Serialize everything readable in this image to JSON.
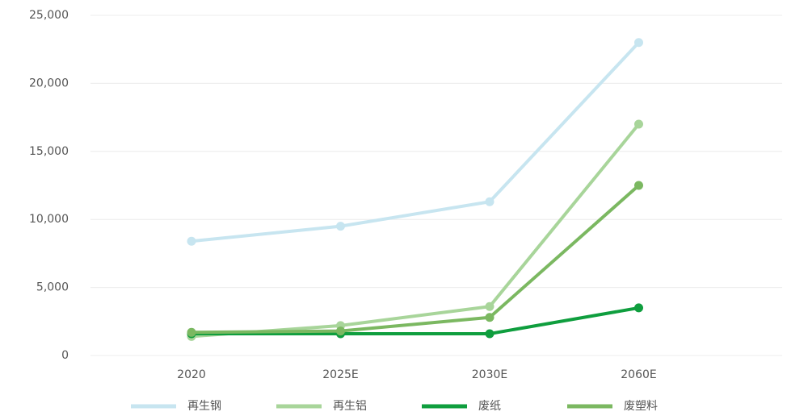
{
  "chart_data": {
    "type": "line",
    "categories": [
      "2020",
      "2025E",
      "2030E",
      "2060E"
    ],
    "ylim": [
      0,
      25000
    ],
    "yticks": [
      0,
      {
        "value": 5000,
        "label": "5,000"
      },
      {
        "value": 10000,
        "label": "10,000"
      },
      {
        "value": 15000,
        "label": "15,000"
      },
      {
        "value": 20000,
        "label": "20,000"
      },
      {
        "value": 25000,
        "label": "25,000"
      }
    ],
    "grid": true,
    "legend": "bottom",
    "series": [
      {
        "name": "再生钢",
        "color": "#c7e5f0",
        "values": [
          8400,
          9500,
          11300,
          23000
        ]
      },
      {
        "name": "再生铝",
        "color": "#a8d59a",
        "values": [
          1400,
          2200,
          3600,
          17000
        ]
      },
      {
        "name": "废纸",
        "color": "#0f9e3e",
        "values": [
          1600,
          1600,
          1600,
          3500
        ]
      },
      {
        "name": "废塑料",
        "color": "#7bb861",
        "values": [
          1700,
          1800,
          2800,
          12500
        ]
      }
    ]
  }
}
